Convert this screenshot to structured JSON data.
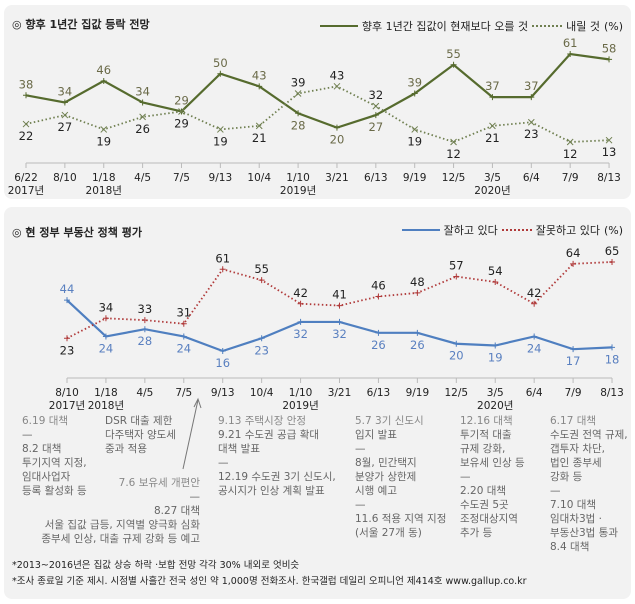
{
  "chart_data": [
    {
      "type": "line",
      "title": "◎ 향후 1년간 집값 등락 전망",
      "unit_label": "(%)",
      "categories": [
        "6/22",
        "8/10",
        "1/18",
        "4/5",
        "7/5",
        "9/13",
        "10/4",
        "1/10",
        "3/21",
        "6/13",
        "9/19",
        "12/5",
        "3/5",
        "6/4",
        "7/9",
        "8/13"
      ],
      "year_labels": {
        "0": "2017년",
        "2": "2018년",
        "7": "2019년",
        "12": "2020년"
      },
      "series": [
        {
          "name": "향후 1년간 집값이 현재보다 오를 것",
          "color": "#566b2e",
          "style": "solid",
          "marker": "plus",
          "values": [
            38,
            34,
            46,
            34,
            29,
            50,
            43,
            28,
            20,
            27,
            39,
            55,
            37,
            37,
            61,
            58
          ]
        },
        {
          "name": "내릴 것",
          "color": "#6f7f50",
          "style": "dotted",
          "marker": "x",
          "values": [
            22,
            27,
            19,
            26,
            29,
            19,
            21,
            39,
            43,
            32,
            19,
            12,
            21,
            23,
            12,
            13
          ]
        }
      ],
      "grid": false,
      "legend": "top-right"
    },
    {
      "type": "line",
      "title": "◎ 현 정부 부동산 정책 평가",
      "unit_label": "(%)",
      "categories": [
        "8/10",
        "1/18",
        "4/5",
        "7/5",
        "9/13",
        "10/4",
        "1/10",
        "3/21",
        "6/13",
        "9/19",
        "12/5",
        "3/5",
        "6/4",
        "7/9",
        "8/13"
      ],
      "year_labels": {
        "0": "2017년",
        "1": "2018년",
        "6": "2019년",
        "11": "2020년"
      },
      "series": [
        {
          "name": "잘하고 있다",
          "color": "#4f7fc0",
          "style": "solid",
          "marker": "plus",
          "values": [
            44,
            24,
            28,
            24,
            16,
            23,
            32,
            32,
            26,
            26,
            20,
            19,
            24,
            17,
            18
          ]
        },
        {
          "name": "잘못하고 있다",
          "color": "#b03a3a",
          "style": "dotted",
          "marker": "plus",
          "values": [
            23,
            34,
            33,
            31,
            61,
            55,
            42,
            41,
            46,
            48,
            57,
            54,
            42,
            64,
            65
          ]
        }
      ],
      "grid": false,
      "legend": "top-right"
    }
  ],
  "annotations": [
    {
      "lines": [
        "6.19 대책",
        "—",
        "8.2 대책",
        "투기지역 지정,",
        "임대사업자",
        "등록 활성화 등"
      ]
    },
    {
      "lines": [
        "DSR 대출 제한",
        "다주택자 양도세",
        "중과 적용"
      ]
    },
    {
      "lines": [
        "7.6  보유세 개편안",
        "—",
        "8.27 대책",
        "서울 집값 급등, 지역별 양극화 심화",
        "종부세 인상, 대출 규제 강화 등 예고"
      ]
    },
    {
      "lines": [
        "9.13 주택시장 안정",
        "9.21 수도권 공급 확대",
        "대책 발표",
        "—",
        "12.19 수도권 3기 신도시,",
        "공시지가 인상 계획 발표"
      ]
    },
    {
      "lines": [
        "5.7 3기 신도시",
        "입지 발표",
        "—",
        "8월, 민간택지",
        "분양가 상한제",
        "시행 예고",
        "—",
        "11.6 적용 지역 지정",
        "(서울 27개 동)"
      ]
    },
    {
      "lines": [
        "12.16 대책",
        "투기적 대출",
        "규제 강화,",
        "보유세 인상 등",
        "—",
        "2.20 대책",
        "수도권 5곳",
        "조정대상지역",
        "추가 등"
      ]
    },
    {
      "lines": [
        "6.17 대책",
        "수도권 전역 규제,",
        "갭투자 차단,",
        "법인 종부세",
        "강화 등",
        "—",
        "7.10 대책",
        "임대차3법 ·",
        "부동산3법 통과",
        "8.4 대책"
      ]
    }
  ],
  "footnotes": [
    "*2013~2016년은 집값 상승 하락 ·보합 전망 각각 30% 내외로 엇비슷",
    "*조사 종료일 기준 제시. 시점별 사흘간 전국 성인 약 1,000명 전화조사. 한국갤럽 데일리 오피니언 제414호 www.gallup.co.kr"
  ]
}
